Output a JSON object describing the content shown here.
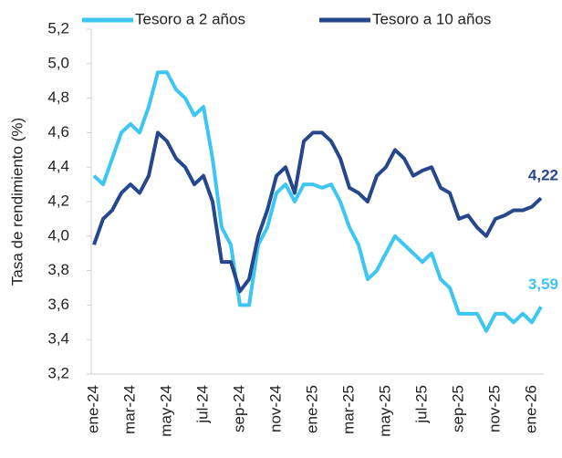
{
  "chart_data": {
    "type": "line",
    "y_label": "Tasa de rendimiento (%)",
    "categories": [
      "ene-24",
      null,
      null,
      null,
      "mar-24",
      null,
      null,
      null,
      "may-24",
      null,
      null,
      null,
      "jul-24",
      null,
      null,
      null,
      "sep-24",
      null,
      null,
      null,
      "nov-24",
      null,
      null,
      null,
      "ene-25",
      null,
      null,
      null,
      "mar-25",
      null,
      null,
      null,
      "may-25",
      null,
      null,
      null,
      "jul-25",
      null,
      null,
      null,
      "sep-25",
      null,
      null,
      null,
      "nov-25",
      null,
      null,
      null,
      "ene-26",
      null
    ],
    "series": [
      {
        "name": "Tesoro a 2 años",
        "color": "#3ec6f2",
        "end_label": "3,59",
        "values": [
          4.35,
          4.3,
          4.45,
          4.6,
          4.65,
          4.6,
          4.75,
          4.95,
          4.95,
          4.85,
          4.8,
          4.7,
          4.75,
          4.45,
          4.05,
          3.95,
          3.6,
          3.6,
          3.95,
          4.05,
          4.25,
          4.3,
          4.2,
          4.3,
          4.3,
          4.28,
          4.3,
          4.2,
          4.05,
          3.95,
          3.75,
          3.8,
          3.9,
          4.0,
          3.95,
          3.9,
          3.85,
          3.9,
          3.75,
          3.7,
          3.55,
          3.55,
          3.55,
          3.45,
          3.55,
          3.55,
          3.5,
          3.55,
          3.5,
          3.59
        ]
      },
      {
        "name": "Tesoro a 10 años",
        "color": "#27478c",
        "end_label": "4,22",
        "values": [
          3.95,
          4.1,
          4.15,
          4.25,
          4.3,
          4.25,
          4.35,
          4.6,
          4.55,
          4.45,
          4.4,
          4.3,
          4.35,
          4.2,
          3.85,
          3.85,
          3.68,
          3.75,
          4.0,
          4.15,
          4.35,
          4.4,
          4.25,
          4.55,
          4.6,
          4.6,
          4.55,
          4.45,
          4.28,
          4.25,
          4.2,
          4.35,
          4.4,
          4.5,
          4.45,
          4.35,
          4.38,
          4.4,
          4.28,
          4.25,
          4.1,
          4.12,
          4.05,
          4.0,
          4.1,
          4.12,
          4.15,
          4.15,
          4.17,
          4.22
        ]
      }
    ],
    "ylim": [
      3.2,
      5.2
    ],
    "yticks": [
      {
        "value": 3.2,
        "label": "3,2"
      },
      {
        "value": 3.4,
        "label": "3,4"
      },
      {
        "value": 3.6,
        "label": "3,6"
      },
      {
        "value": 3.8,
        "label": "3,8"
      },
      {
        "value": 4.0,
        "label": "4,0"
      },
      {
        "value": 4.2,
        "label": "4,2"
      },
      {
        "value": 4.4,
        "label": "4,4"
      },
      {
        "value": 4.6,
        "label": "4,6"
      },
      {
        "value": 4.8,
        "label": "4,8"
      },
      {
        "value": 5.0,
        "label": "5,0"
      },
      {
        "value": 5.2,
        "label": "5,2"
      }
    ],
    "legend": "top"
  }
}
